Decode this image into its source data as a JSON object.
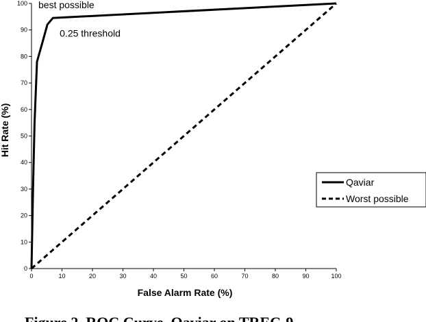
{
  "chart_data": {
    "type": "line",
    "xlabel": "False Alarm Rate (%)",
    "ylabel": "Hit Rate (%)",
    "xlim": [
      0,
      100
    ],
    "ylim": [
      0,
      100
    ],
    "x_ticks": [
      0,
      10,
      20,
      30,
      40,
      50,
      60,
      70,
      80,
      90,
      100
    ],
    "y_ticks": [
      0,
      10,
      20,
      30,
      40,
      50,
      60,
      70,
      80,
      90,
      100
    ],
    "grid": false,
    "legend_position": "right",
    "series": [
      {
        "name": "Qaviar",
        "style": "solid",
        "color": "#000000",
        "points": [
          [
            0,
            0
          ],
          [
            0.5,
            30
          ],
          [
            1,
            55
          ],
          [
            1.8,
            78
          ],
          [
            4,
            87
          ],
          [
            5.2,
            92
          ],
          [
            7,
            94.5
          ],
          [
            100,
            100
          ]
        ]
      },
      {
        "name": "Worst possible",
        "style": "dashed",
        "color": "#000000",
        "points": [
          [
            0,
            0
          ],
          [
            100,
            100
          ]
        ]
      }
    ],
    "annotations": [
      {
        "text": "best possible",
        "x": 100,
        "y": 100
      },
      {
        "text": "0.25 threshold",
        "x": 7,
        "y": 94.5
      }
    ],
    "caption": "Figure 2. ROC Curve, Qaviar on TREC-9"
  }
}
